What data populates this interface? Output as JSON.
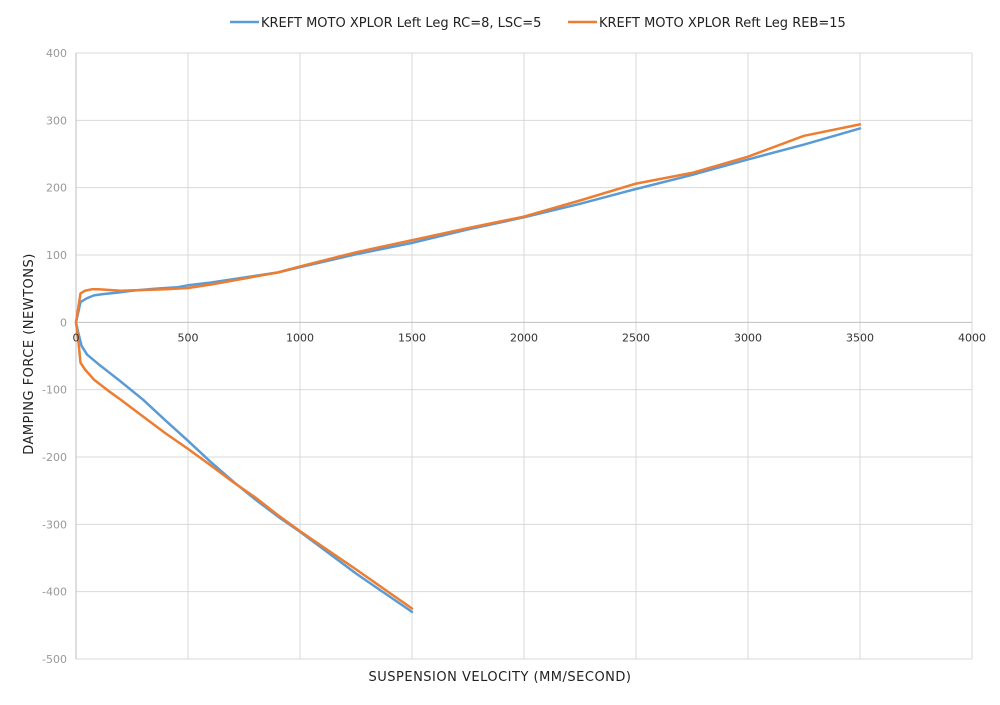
{
  "chart_data": {
    "type": "line",
    "title": "",
    "xlabel": "SUSPENSION VELOCITY (MM/SECOND)",
    "ylabel": "DAMPING FORCE (NEWTONS)",
    "xlim": [
      0,
      4000
    ],
    "ylim": [
      -500,
      400
    ],
    "xticks": [
      0,
      500,
      1000,
      1500,
      2000,
      2500,
      3000,
      3500,
      4000
    ],
    "yticks": [
      400,
      300,
      200,
      100,
      0,
      -100,
      -200,
      -300,
      -400,
      -500
    ],
    "grid": true,
    "legend_position": "top",
    "series": [
      {
        "name": "KREFT MOTO XPLOR Left Leg RC=8, LSC=5",
        "color": "#5b9bd5",
        "compression": [
          [
            0,
            0
          ],
          [
            20,
            30
          ],
          [
            50,
            36
          ],
          [
            80,
            40
          ],
          [
            120,
            42
          ],
          [
            180,
            44
          ],
          [
            250,
            47
          ],
          [
            350,
            50
          ],
          [
            450,
            52
          ],
          [
            500,
            55
          ],
          [
            600,
            59
          ],
          [
            700,
            64
          ],
          [
            900,
            74
          ],
          [
            1000,
            82
          ],
          [
            1250,
            101
          ],
          [
            1500,
            118
          ],
          [
            1750,
            138
          ],
          [
            2000,
            156
          ],
          [
            2250,
            176
          ],
          [
            2500,
            198
          ],
          [
            2750,
            219
          ],
          [
            3000,
            242
          ],
          [
            3250,
            264
          ],
          [
            3500,
            288
          ]
        ],
        "rebound": [
          [
            0,
            0
          ],
          [
            10,
            -15
          ],
          [
            25,
            -35
          ],
          [
            50,
            -48
          ],
          [
            100,
            -62
          ],
          [
            150,
            -75
          ],
          [
            200,
            -88
          ],
          [
            300,
            -115
          ],
          [
            400,
            -146
          ],
          [
            500,
            -176
          ],
          [
            600,
            -207
          ],
          [
            700,
            -236
          ],
          [
            800,
            -263
          ],
          [
            900,
            -288
          ],
          [
            1000,
            -311
          ],
          [
            1250,
            -373
          ],
          [
            1500,
            -430
          ]
        ]
      },
      {
        "name": "KREFT MOTO XPLOR Reft Leg REB=15",
        "color": "#ed7d31",
        "compression": [
          [
            0,
            0
          ],
          [
            20,
            43
          ],
          [
            40,
            47
          ],
          [
            70,
            49
          ],
          [
            100,
            49
          ],
          [
            150,
            48
          ],
          [
            200,
            47
          ],
          [
            300,
            48
          ],
          [
            400,
            49
          ],
          [
            500,
            51
          ],
          [
            600,
            56
          ],
          [
            700,
            62
          ],
          [
            900,
            74
          ],
          [
            1000,
            83
          ],
          [
            1250,
            104
          ],
          [
            1500,
            122
          ],
          [
            1750,
            140
          ],
          [
            2000,
            157
          ],
          [
            2250,
            181
          ],
          [
            2500,
            206
          ],
          [
            2750,
            222
          ],
          [
            3000,
            246
          ],
          [
            3250,
            277
          ],
          [
            3500,
            294
          ]
        ],
        "rebound": [
          [
            0,
            0
          ],
          [
            10,
            -25
          ],
          [
            20,
            -60
          ],
          [
            40,
            -70
          ],
          [
            80,
            -85
          ],
          [
            150,
            -103
          ],
          [
            200,
            -115
          ],
          [
            300,
            -140
          ],
          [
            400,
            -165
          ],
          [
            500,
            -188
          ],
          [
            600,
            -212
          ],
          [
            700,
            -237
          ],
          [
            800,
            -260
          ],
          [
            900,
            -286
          ],
          [
            1000,
            -310
          ],
          [
            1250,
            -367
          ],
          [
            1500,
            -425
          ]
        ]
      }
    ]
  }
}
